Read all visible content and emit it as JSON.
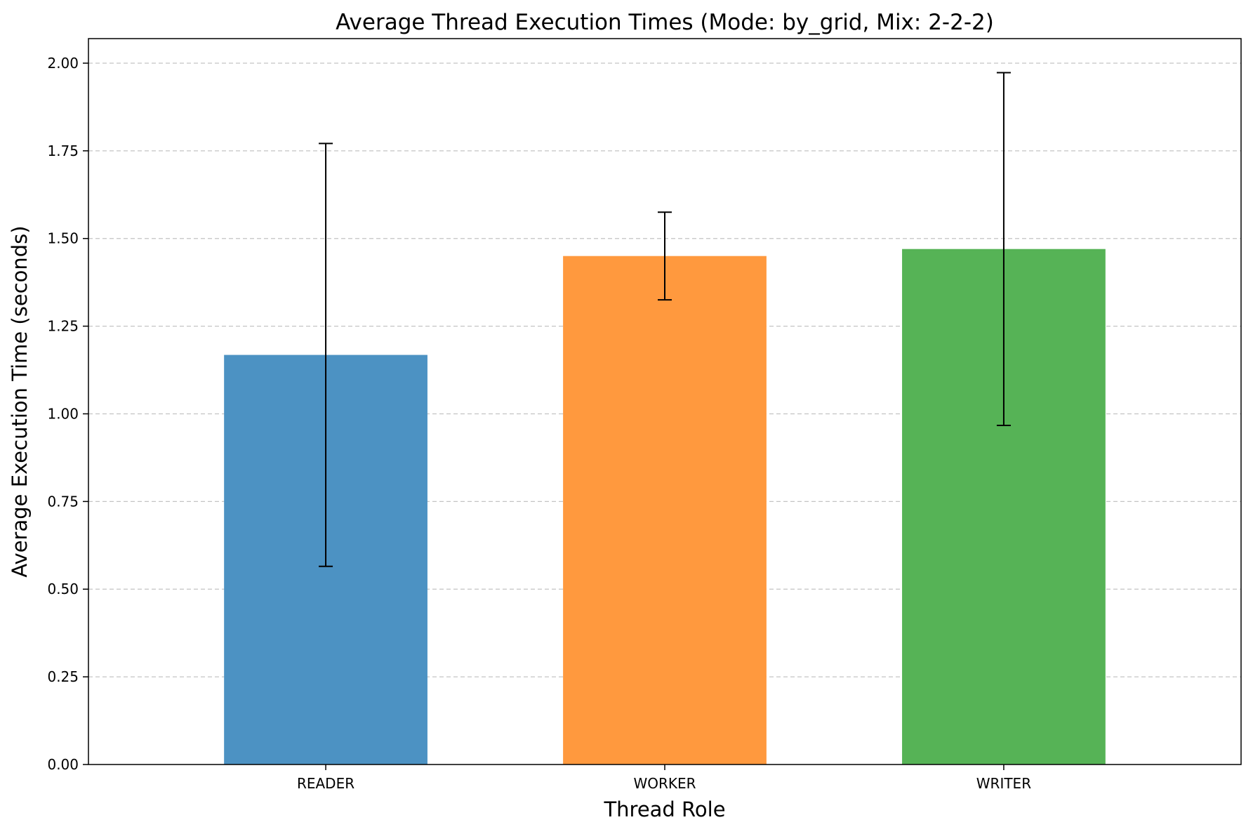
{
  "chart_data": {
    "type": "bar",
    "title": "Average Thread Execution Times (Mode: by_grid, Mix: 2-2-2)",
    "xlabel": "Thread Role",
    "ylabel": "Average Execution Time (seconds)",
    "categories": [
      "READER",
      "WORKER",
      "WRITER"
    ],
    "values": [
      1.168,
      1.45,
      1.47
    ],
    "error": [
      0.603,
      0.125,
      0.503
    ],
    "colors": [
      "#4c92c3",
      "#ff993e",
      "#56b356"
    ],
    "ylim": [
      0,
      2.07
    ],
    "yticks": [
      "0.00",
      "0.25",
      "0.50",
      "0.75",
      "1.00",
      "1.25",
      "1.50",
      "1.75",
      "2.00"
    ],
    "grid": "y-dashed",
    "legend": "none"
  }
}
